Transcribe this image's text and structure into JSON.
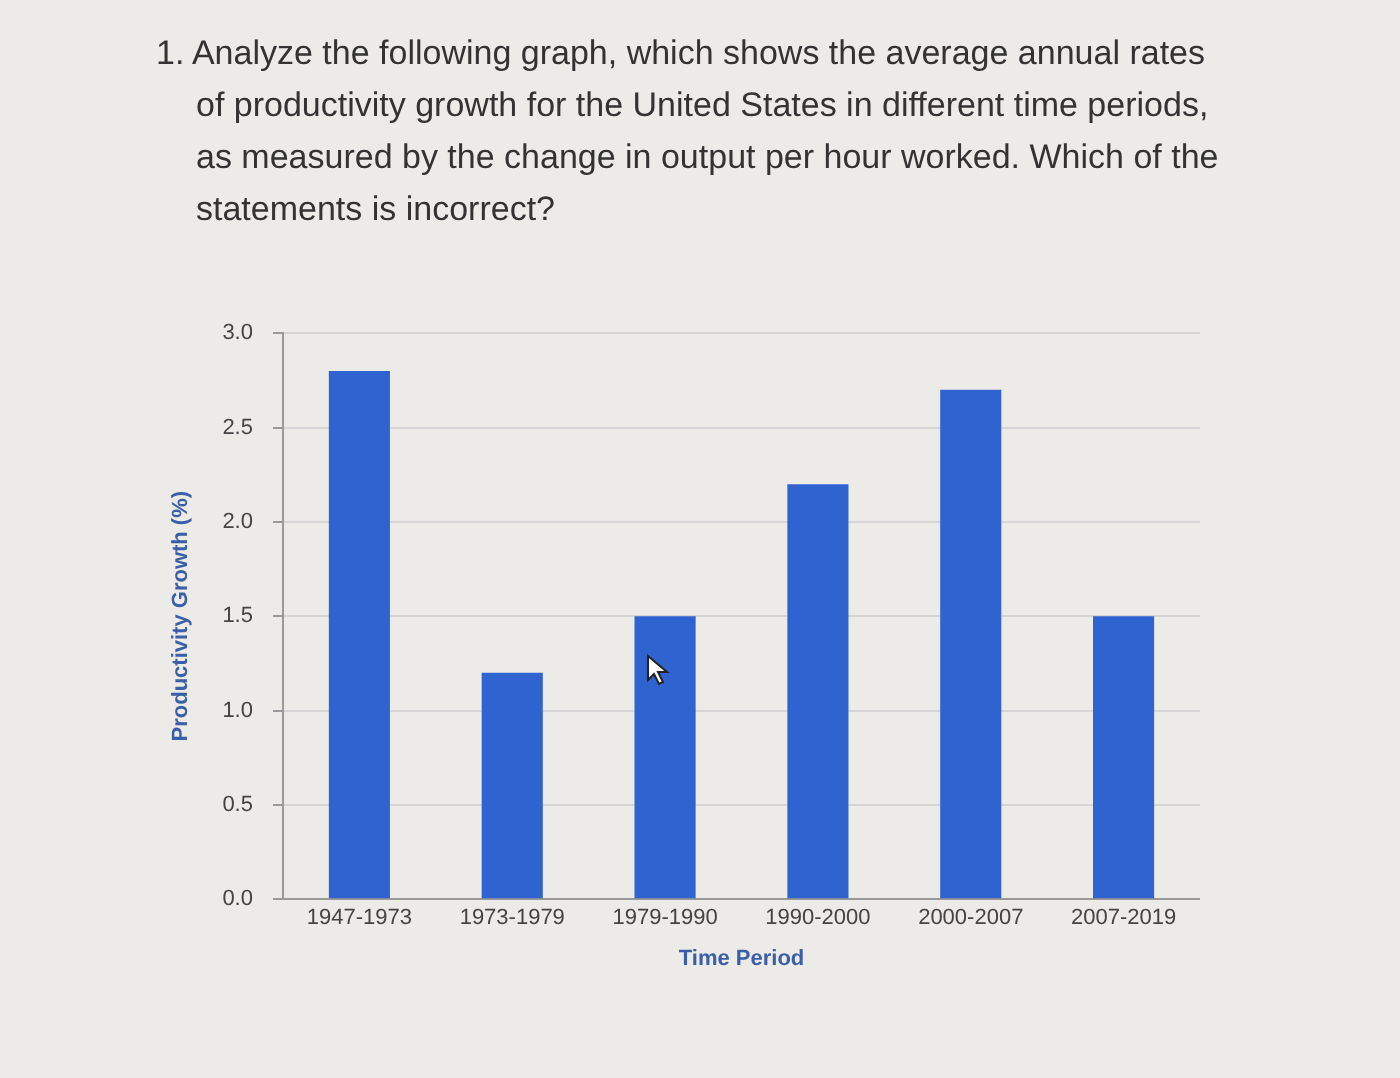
{
  "chart_data": {
    "type": "bar",
    "title": "1. Analyze the following graph, which shows the average annual rates of productivity growth for the United States in different time periods, as measured by the change in output per hour worked. Which of the statements is incorrect?",
    "xlabel": "Time Period",
    "ylabel": "Productivity Growth (%)",
    "categories": [
      "1947-1973",
      "1973-1979",
      "1979-1990",
      "1990-2000",
      "2000-2007",
      "2007-2019"
    ],
    "values": [
      2.8,
      1.2,
      1.5,
      2.2,
      2.7,
      1.5
    ],
    "color": "#2f64d0",
    "ylim": [
      0,
      3
    ],
    "yticks": [
      {
        "value": 0,
        "label": "0.0"
      },
      {
        "value": 0.5,
        "label": "0.5"
      },
      {
        "value": 1,
        "label": "1.0"
      },
      {
        "value": 1.5,
        "label": "1.5"
      },
      {
        "value": 2,
        "label": "2.0"
      },
      {
        "value": 2.5,
        "label": "2.5"
      },
      {
        "value": 3,
        "label": "3.0"
      }
    ],
    "grid": "y"
  }
}
